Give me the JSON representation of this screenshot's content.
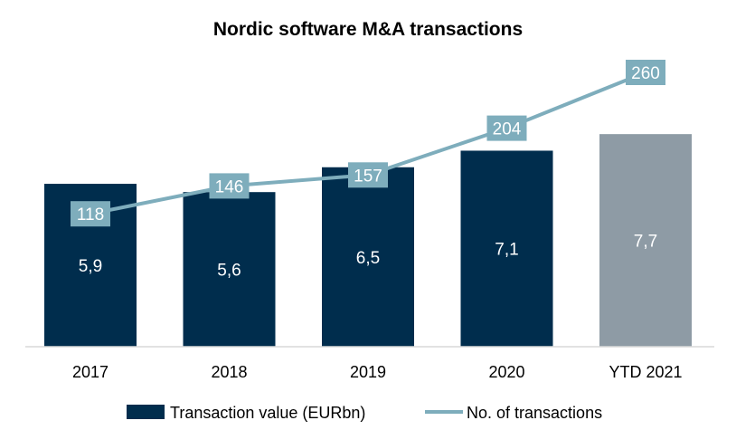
{
  "chart_data": {
    "type": "bar",
    "title": "Nordic software M&A transactions",
    "categories": [
      "2017",
      "2018",
      "2019",
      "2020",
      "YTD 2021"
    ],
    "series": [
      {
        "name": "Transaction value (EURbn)",
        "kind": "bar",
        "values": [
          5.9,
          5.6,
          6.5,
          7.1,
          7.7
        ],
        "value_labels": [
          "5,9",
          "5,6",
          "6,5",
          "7,1",
          "7,7"
        ],
        "color": "#002d4d",
        "highlight_color": "#8e9ba5",
        "highlight_category": "YTD 2021"
      },
      {
        "name": "No. of transactions",
        "kind": "line",
        "values": [
          118,
          146,
          157,
          204,
          260
        ],
        "value_labels": [
          "118",
          "146",
          "157",
          "204",
          "260"
        ],
        "color": "#7eadbc"
      }
    ],
    "xlabel": "",
    "ylabel": "",
    "grid": false,
    "legend": "bottom-center"
  }
}
